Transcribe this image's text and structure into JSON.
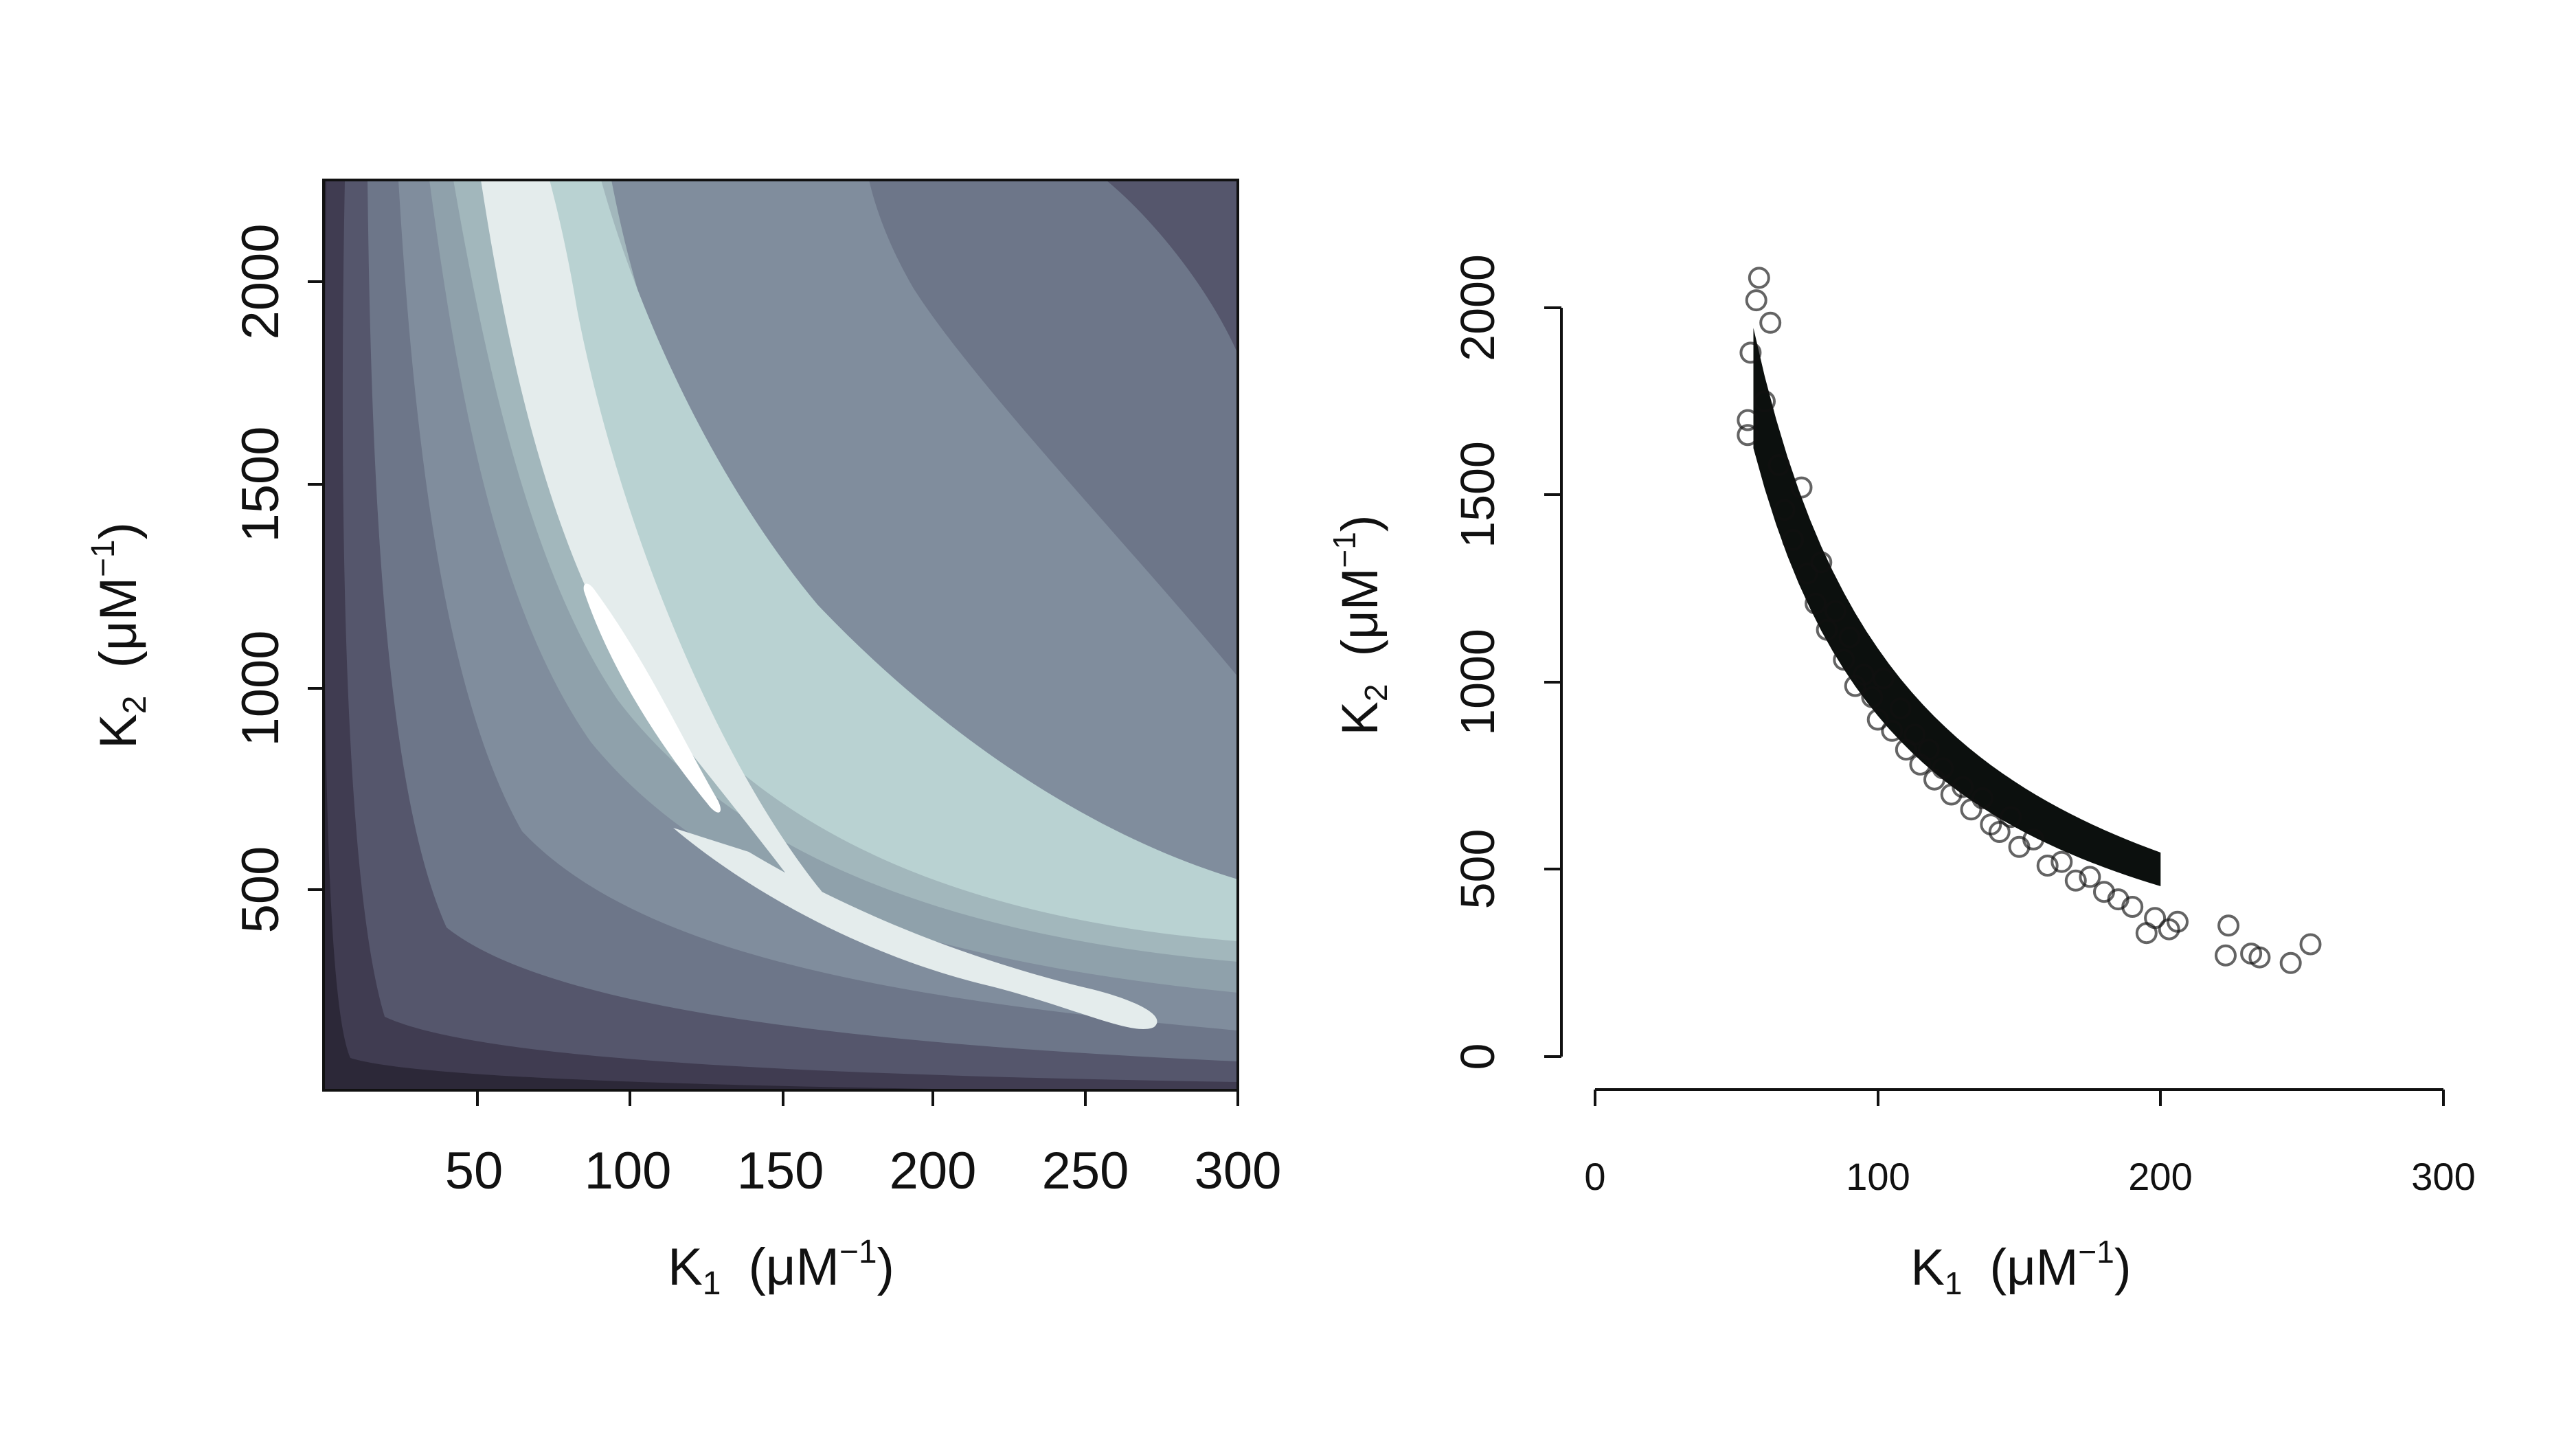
{
  "chart_data": [
    {
      "type": "heatmap",
      "subtype": "filled-contour",
      "xlabel": {
        "symbol": "K",
        "sub": "1",
        "unit_open": "(μM",
        "unit_sup": "−1",
        "unit_close": ")"
      },
      "ylabel": {
        "symbol": "K",
        "sub": "2",
        "unit_open": "(μM",
        "unit_sup": "−1",
        "unit_close": ")"
      },
      "xlim": [
        0,
        300
      ],
      "ylim": [
        0,
        2250
      ],
      "x_ticks": [
        "50",
        "100",
        "150",
        "200",
        "250",
        "300"
      ],
      "y_ticks": [
        "500",
        "1000",
        "1500",
        "2000"
      ],
      "grid": false,
      "legend": "none",
      "ridge": {
        "x": [
          55,
          62,
          72,
          85,
          100,
          125,
          150,
          200,
          270,
          300
        ],
        "y": [
          2250,
          1900,
          1500,
          1150,
          850,
          560,
          420,
          260,
          180,
          165
        ]
      },
      "contour_level_colors": [
        "#2c2838",
        "#403c51",
        "#55566c",
        "#6d7689",
        "#808d9d",
        "#8fa1ab",
        "#a2b7bc",
        "#b9d2d2",
        "#e4ecec",
        "#ffffff"
      ]
    },
    {
      "type": "scatter",
      "xlabel": {
        "symbol": "K",
        "sub": "1",
        "unit_open": "(μM",
        "unit_sup": "−1",
        "unit_close": ")"
      },
      "ylabel": {
        "symbol": "K",
        "sub": "2",
        "unit_open": "(μM",
        "unit_sup": "−1",
        "unit_close": ")"
      },
      "xlim": [
        0,
        300
      ],
      "ylim": [
        0,
        2000
      ],
      "x_ticks": [
        "0",
        "100",
        "200",
        "300"
      ],
      "y_ticks": [
        "0",
        "500",
        "1000",
        "1500",
        "2000"
      ],
      "grid": false,
      "legend": "none",
      "marker": "open-circle",
      "marker_color": "#111111",
      "relationship": "K2 ≈ 100000 / K1 (approx., band)",
      "points": [
        {
          "x": 55,
          "y": 1880
        },
        {
          "x": 57,
          "y": 2020
        },
        {
          "x": 58,
          "y": 2080
        },
        {
          "x": 60,
          "y": 1750
        },
        {
          "x": 62,
          "y": 1960
        },
        {
          "x": 54,
          "y": 1660
        },
        {
          "x": 54,
          "y": 1700
        },
        {
          "x": 65,
          "y": 1580
        },
        {
          "x": 67,
          "y": 1460
        },
        {
          "x": 70,
          "y": 1380
        },
        {
          "x": 73,
          "y": 1520
        },
        {
          "x": 75,
          "y": 1290
        },
        {
          "x": 78,
          "y": 1210
        },
        {
          "x": 80,
          "y": 1320
        },
        {
          "x": 82,
          "y": 1140
        },
        {
          "x": 85,
          "y": 1190
        },
        {
          "x": 88,
          "y": 1060
        },
        {
          "x": 90,
          "y": 1120
        },
        {
          "x": 92,
          "y": 990
        },
        {
          "x": 95,
          "y": 1020
        },
        {
          "x": 98,
          "y": 960
        },
        {
          "x": 100,
          "y": 900
        },
        {
          "x": 102,
          "y": 1010
        },
        {
          "x": 105,
          "y": 870
        },
        {
          "x": 108,
          "y": 930
        },
        {
          "x": 110,
          "y": 820
        },
        {
          "x": 113,
          "y": 860
        },
        {
          "x": 115,
          "y": 780
        },
        {
          "x": 118,
          "y": 820
        },
        {
          "x": 120,
          "y": 740
        },
        {
          "x": 123,
          "y": 770
        },
        {
          "x": 126,
          "y": 700
        },
        {
          "x": 130,
          "y": 720
        },
        {
          "x": 133,
          "y": 660
        },
        {
          "x": 137,
          "y": 690
        },
        {
          "x": 140,
          "y": 620
        },
        {
          "x": 143,
          "y": 600
        },
        {
          "x": 147,
          "y": 640
        },
        {
          "x": 150,
          "y": 560
        },
        {
          "x": 155,
          "y": 580
        },
        {
          "x": 160,
          "y": 510
        },
        {
          "x": 165,
          "y": 520
        },
        {
          "x": 170,
          "y": 470
        },
        {
          "x": 175,
          "y": 480
        },
        {
          "x": 180,
          "y": 440
        },
        {
          "x": 185,
          "y": 420
        },
        {
          "x": 190,
          "y": 400
        },
        {
          "x": 195,
          "y": 330
        },
        {
          "x": 198,
          "y": 370
        },
        {
          "x": 203,
          "y": 340
        },
        {
          "x": 206,
          "y": 360
        },
        {
          "x": 223,
          "y": 270
        },
        {
          "x": 224,
          "y": 350
        },
        {
          "x": 232,
          "y": 275
        },
        {
          "x": 235,
          "y": 265
        },
        {
          "x": 246,
          "y": 250
        },
        {
          "x": 253,
          "y": 300
        }
      ]
    }
  ]
}
